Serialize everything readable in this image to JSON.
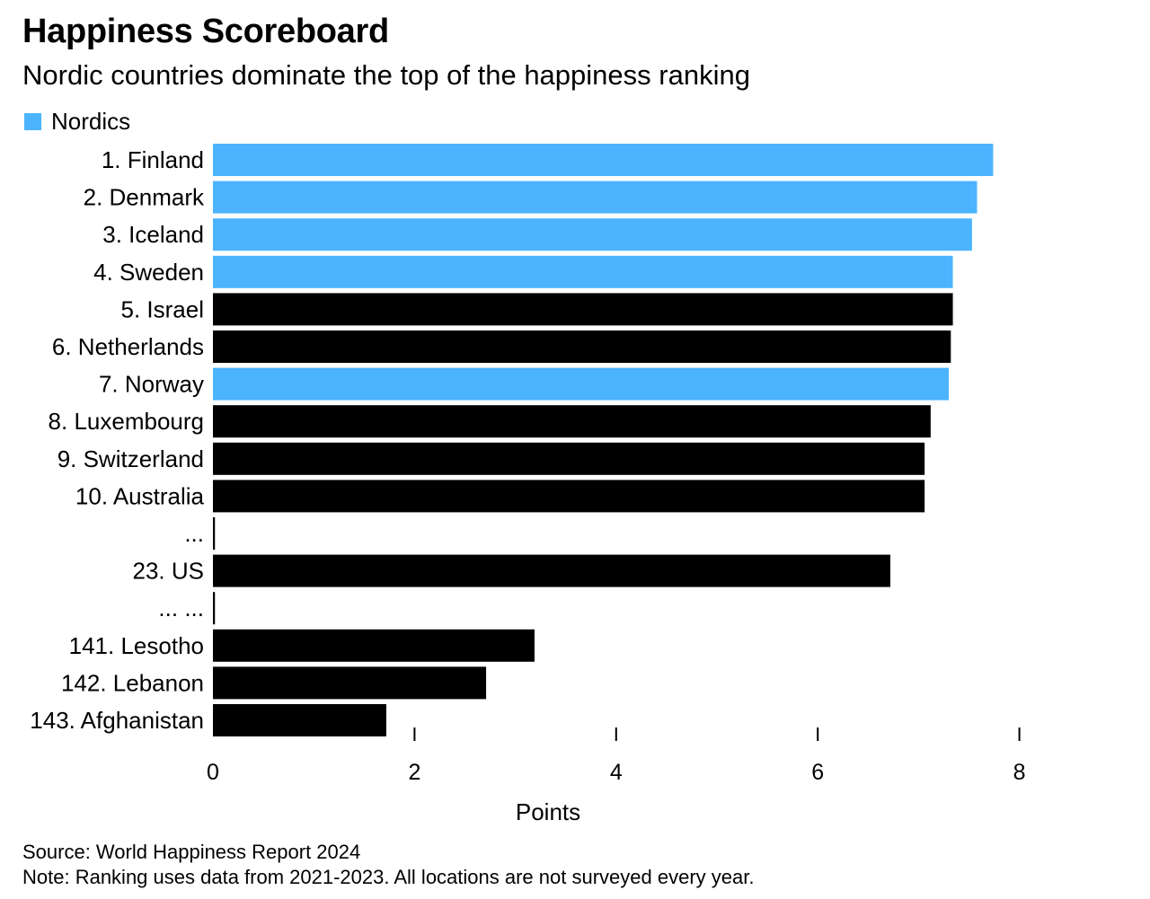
{
  "title": "Happiness Scoreboard",
  "subtitle": "Nordic countries dominate the top of the happiness ranking",
  "legend": {
    "label": "Nordics",
    "color": "#4cb3ff"
  },
  "colors": {
    "nordic": "#4cb3ff",
    "other": "#000000"
  },
  "source": "Source: World Happiness Report 2024",
  "note": "Note: Ranking uses data from 2021-2023. All locations are not surveyed every year.",
  "chart_data": {
    "type": "bar",
    "orientation": "horizontal",
    "title": "Happiness Scoreboard",
    "subtitle": "Nordic countries dominate the top of the happiness ranking",
    "xlabel": "Points",
    "ylabel": "",
    "xlim": [
      0,
      8
    ],
    "xticks": [
      0,
      2,
      4,
      6,
      8
    ],
    "grid": false,
    "legend_position": "top-left",
    "categories": [
      "1. Finland",
      "2. Denmark",
      "3. Iceland",
      "4. Sweden",
      "5. Israel",
      "6. Netherlands",
      "7. Norway",
      "8. Luxembourg",
      "9. Switzerland",
      "10. Australia",
      "...",
      "23. US",
      "... ...",
      "141. Lesotho",
      "142. Lebanon",
      "143. Afghanistan"
    ],
    "values": [
      7.74,
      7.58,
      7.53,
      7.34,
      7.34,
      7.32,
      7.3,
      7.12,
      7.06,
      7.06,
      0.02,
      6.72,
      0.02,
      3.19,
      2.71,
      1.72
    ],
    "nordic": [
      true,
      true,
      true,
      true,
      false,
      false,
      true,
      false,
      false,
      false,
      false,
      false,
      false,
      false,
      false,
      false
    ]
  }
}
